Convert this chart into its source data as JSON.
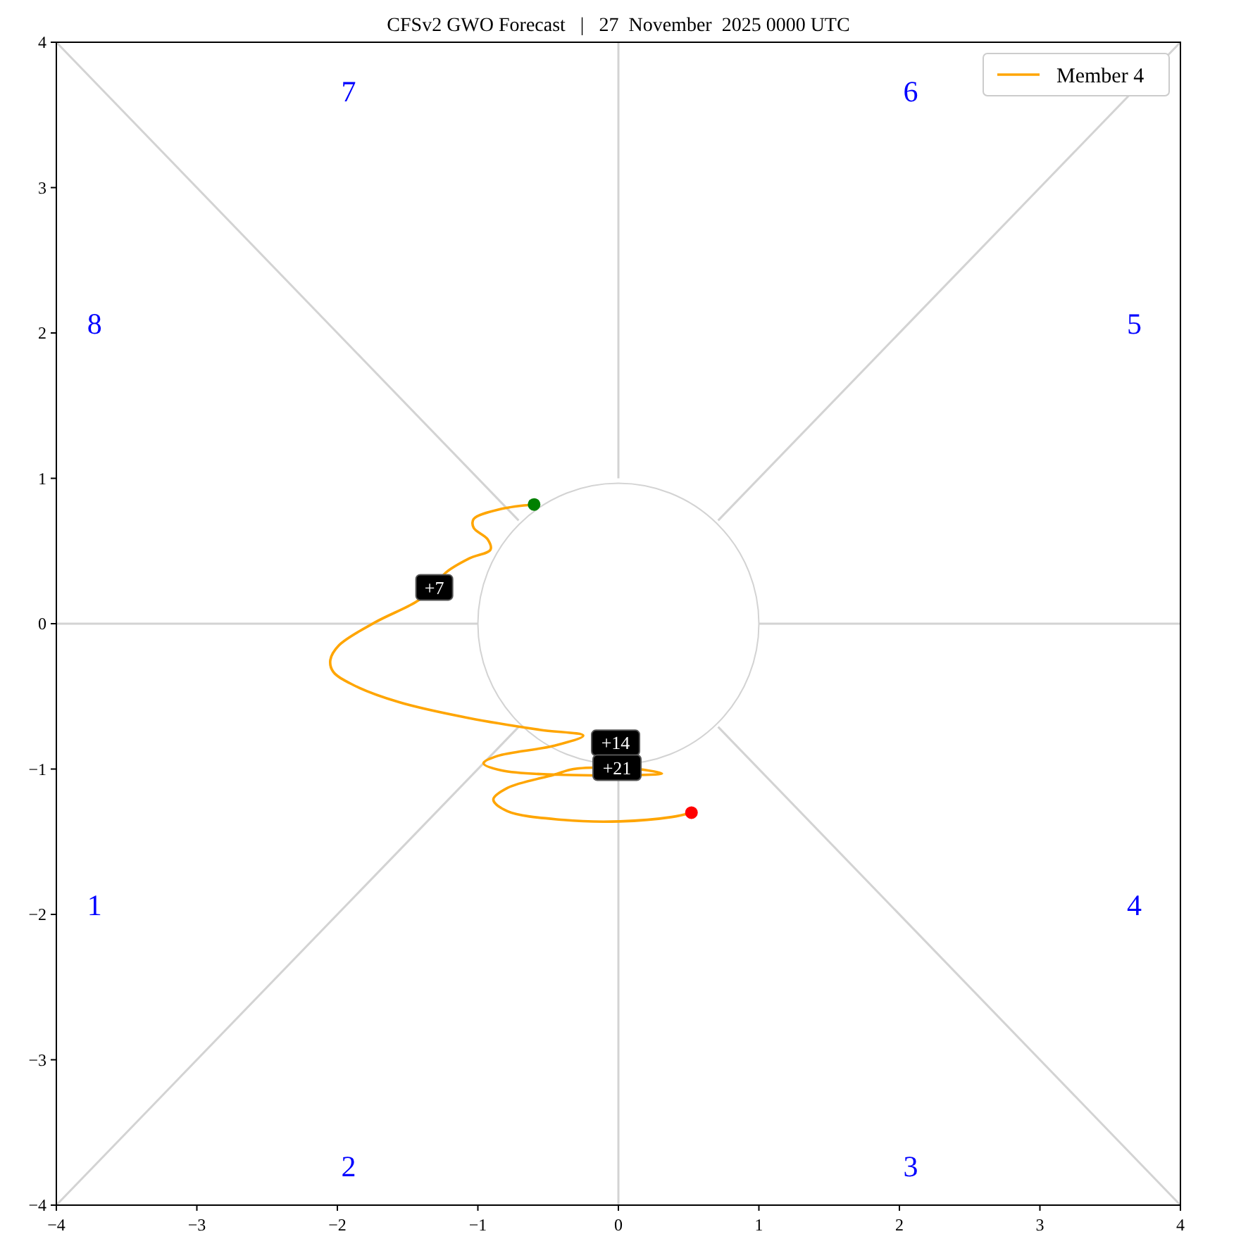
{
  "chart_data": {
    "type": "line",
    "title": "CFSv2 GWO Forecast   |   27  November  2025 0000 UTC",
    "xlim": [
      -4,
      4
    ],
    "ylim": [
      -4,
      4
    ],
    "xticks": [
      {
        "value": -4,
        "label": "−4"
      },
      {
        "value": -3,
        "label": "−3"
      },
      {
        "value": -2,
        "label": "−2"
      },
      {
        "value": -1,
        "label": "−1"
      },
      0,
      1,
      2,
      3,
      4
    ],
    "yticks": [
      {
        "value": -4,
        "label": "−4"
      },
      {
        "value": -3,
        "label": "−3"
      },
      {
        "value": -2,
        "label": "−2"
      },
      {
        "value": -1,
        "label": "−1"
      },
      0,
      1,
      2,
      3,
      4
    ],
    "legend": "top right",
    "series": [
      {
        "color": "#d3d3d3",
        "x": [
          -4,
          -1
        ],
        "values": [
          0,
          0
        ]
      },
      {
        "color": "#d3d3d3",
        "x": [
          1,
          4
        ],
        "values": [
          0,
          0
        ]
      },
      {
        "color": "#d3d3d3",
        "x": [
          0,
          0
        ],
        "values": [
          1,
          4
        ]
      },
      {
        "color": "#d3d3d3",
        "x": [
          0,
          0
        ],
        "values": [
          -1,
          -4
        ]
      },
      {
        "color": "#d3d3d3",
        "x": [
          -4,
          -0.71
        ],
        "values": [
          4,
          0.71
        ]
      },
      {
        "color": "#d3d3d3",
        "x": [
          0.71,
          4
        ],
        "values": [
          0.71,
          4
        ]
      },
      {
        "color": "#d3d3d3",
        "x": [
          -4,
          -0.71
        ],
        "values": [
          -4,
          -0.71
        ]
      },
      {
        "color": "#d3d3d3",
        "x": [
          0.71,
          4
        ],
        "values": [
          -0.71,
          -4
        ]
      },
      {
        "name": "Member 4",
        "color": "#ffa500",
        "x": [
          -0.6,
          -0.83,
          -1.03,
          -1.03,
          -0.93,
          -0.91,
          -1.06,
          -1.23,
          -1.31,
          -1.44,
          -1.73,
          -1.99,
          -2.05,
          -2.03,
          -1.89,
          -1.56,
          -1.06,
          -0.56,
          -0.25,
          -0.46,
          -0.86,
          -0.96,
          -0.83,
          -0.39,
          0.31,
          0.14,
          -0.01,
          -0.32,
          -0.46,
          -0.79,
          -0.89,
          -0.79,
          -0.39,
          0.01,
          0.38,
          0.52
        ],
        "values": [
          0.82,
          0.79,
          0.72,
          0.66,
          0.58,
          0.51,
          0.45,
          0.35,
          0.25,
          0.15,
          0.01,
          -0.15,
          -0.25,
          -0.33,
          -0.42,
          -0.54,
          -0.65,
          -0.73,
          -0.77,
          -0.84,
          -0.91,
          -0.96,
          -1.01,
          -1.04,
          -1.03,
          -1.0,
          -0.99,
          -1.0,
          -1.04,
          -1.13,
          -1.21,
          -1.29,
          -1.35,
          -1.36,
          -1.33,
          -1.3
        ]
      },
      {
        "type": "scatter",
        "marker": "circle",
        "color": "#008000",
        "x": [
          -0.6
        ],
        "values": [
          0.82
        ]
      },
      {
        "type": "scatter",
        "marker": "circle",
        "color": "#ff0000",
        "x": [
          0.52
        ],
        "values": [
          -1.3
        ]
      }
    ],
    "annotations": [
      "1",
      "2",
      "3",
      "4",
      "5",
      "6",
      "7",
      "8",
      {
        "text": "+7",
        "x": -1.31,
        "y": 0.25
      },
      {
        "text": "+14",
        "x": -0.02,
        "y": -0.82
      },
      {
        "text": "+21",
        "x": -0.01,
        "y": -0.99
      }
    ]
  }
}
